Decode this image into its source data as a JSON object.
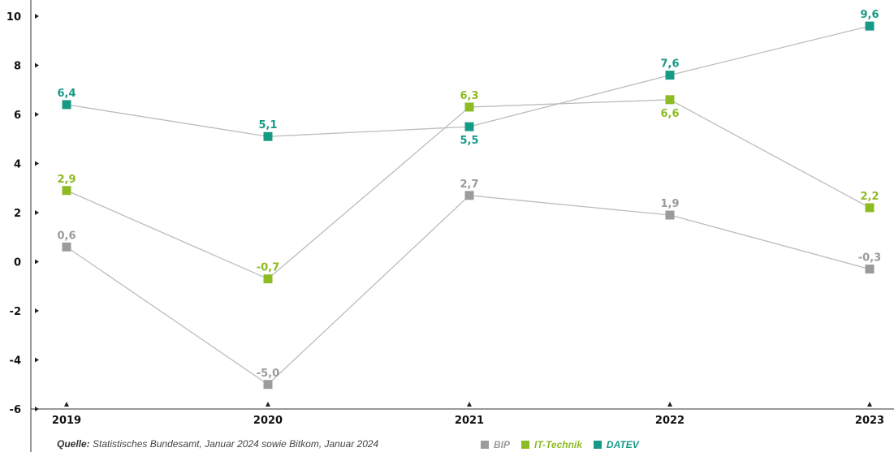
{
  "chart_data": {
    "type": "line",
    "x": [
      "2019",
      "2020",
      "2021",
      "2022",
      "2023"
    ],
    "yticks": [
      "10",
      "8",
      "6",
      "4",
      "2",
      "0",
      "-2",
      "-4",
      "-6"
    ],
    "ylim": [
      -6,
      10
    ],
    "series": [
      {
        "name": "BIP",
        "color": "#9b9b9b",
        "values": [
          0.6,
          -5.0,
          2.7,
          1.9,
          -0.3
        ],
        "labels": [
          "0,6",
          "-5,0",
          "2,7",
          "1,9",
          "-0,3"
        ],
        "label_pos": [
          "above",
          "above",
          "above",
          "above",
          "above"
        ]
      },
      {
        "name": "IT-Technik",
        "color": "#8dbb24",
        "values": [
          2.9,
          -0.7,
          6.3,
          6.6,
          2.2
        ],
        "labels": [
          "2,9",
          "-0,7",
          "6,3",
          "6,6",
          "2,2"
        ],
        "label_pos": [
          "above",
          "above",
          "above",
          "below",
          "above"
        ]
      },
      {
        "name": "DATEV",
        "color": "#169a86",
        "values": [
          6.4,
          5.1,
          5.5,
          7.6,
          9.6
        ],
        "labels": [
          "6,4",
          "5,1",
          "5,5",
          "7,6",
          "9,6"
        ],
        "label_pos": [
          "above",
          "above",
          "below",
          "above",
          "above"
        ]
      }
    ],
    "grid": false,
    "legend_position": "bottom"
  },
  "source": {
    "prefix": "Quelle:",
    "text": " Statistisches Bundesamt, Januar 2024 sowie Bitkom, Januar 2024"
  },
  "legend": [
    "BIP",
    "IT-Technik",
    "DATEV"
  ]
}
